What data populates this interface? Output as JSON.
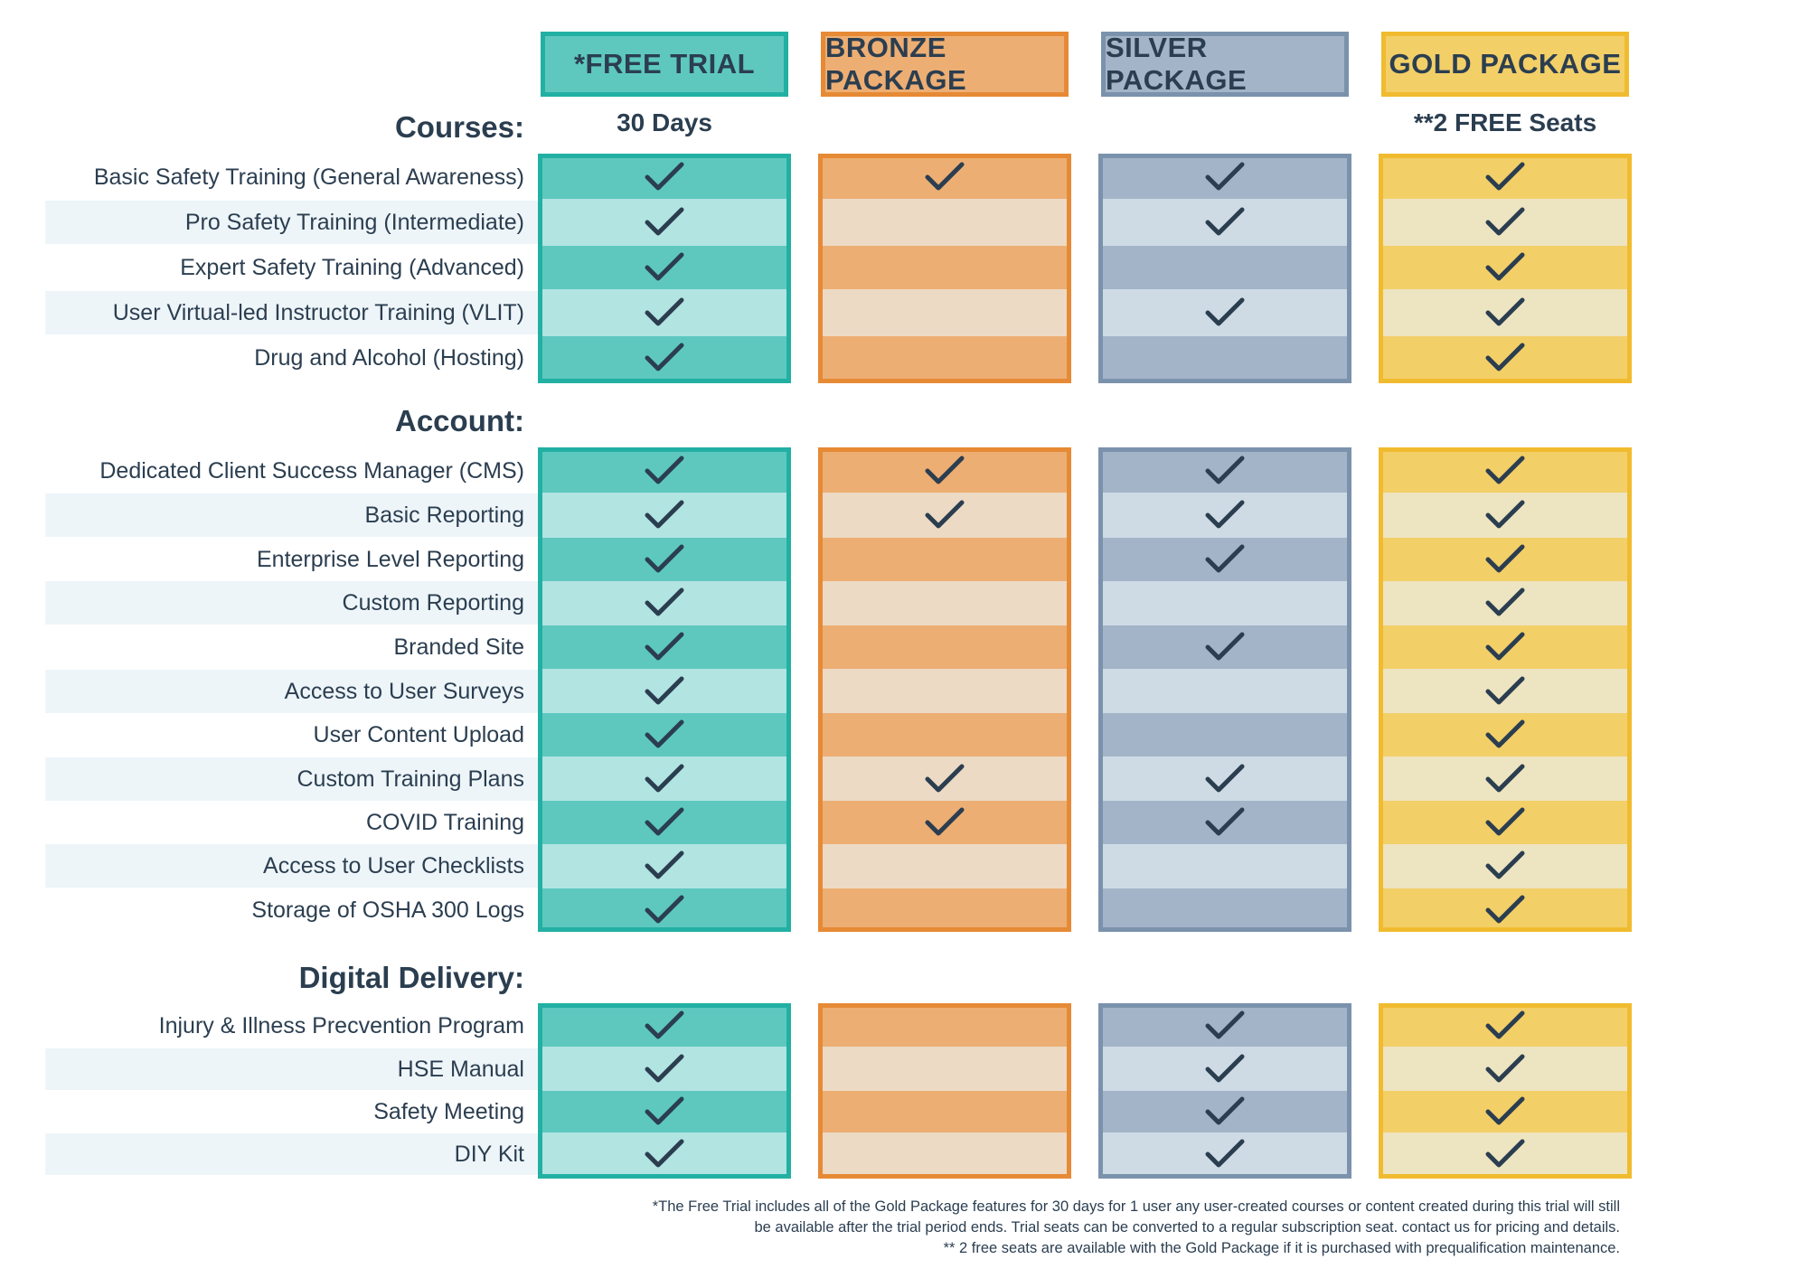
{
  "packages": [
    {
      "key": "free",
      "label": "*FREE TRIAL",
      "subtitle": "30 Days",
      "border": "#22b0a3",
      "header_bg": "#5ec8bf",
      "dark": "#5ec8bf",
      "light": "#b2e4e2"
    },
    {
      "key": "bronze",
      "label": "BRONZE PACKAGE",
      "subtitle": "",
      "border": "#e68a35",
      "header_bg": "#edae73",
      "dark": "#edae73",
      "light": "#ecdac5"
    },
    {
      "key": "silver",
      "label": "SILVER PACKAGE",
      "subtitle": "",
      "border": "#7b92ac",
      "header_bg": "#a4b4c8",
      "dark": "#a4b4c8",
      "light": "#cedbe5"
    },
    {
      "key": "gold",
      "label": "GOLD PACKAGE",
      "subtitle": "**2 FREE Seats",
      "border": "#f0bb2e",
      "header_bg": "#f3cf68",
      "dark": "#f3cf68",
      "light": "#ede4c1"
    }
  ],
  "sections": [
    {
      "title": "Courses:",
      "rows": [
        {
          "label": "Basic Safety Training (General Awareness)",
          "checks": [
            true,
            true,
            true,
            true
          ]
        },
        {
          "label": "Pro Safety Training (Intermediate)",
          "checks": [
            true,
            false,
            true,
            true
          ]
        },
        {
          "label": "Expert Safety Training (Advanced)",
          "checks": [
            true,
            false,
            false,
            true
          ]
        },
        {
          "label": "User Virtual-led Instructor Training (VLIT)",
          "checks": [
            true,
            false,
            true,
            true
          ]
        },
        {
          "label": "Drug and Alcohol (Hosting)",
          "checks": [
            true,
            false,
            false,
            true
          ]
        }
      ]
    },
    {
      "title": "Account:",
      "rows": [
        {
          "label": "Dedicated Client Success Manager (CMS)",
          "checks": [
            true,
            true,
            true,
            true
          ]
        },
        {
          "label": "Basic Reporting",
          "checks": [
            true,
            true,
            true,
            true
          ]
        },
        {
          "label": "Enterprise Level Reporting",
          "checks": [
            true,
            false,
            true,
            true
          ]
        },
        {
          "label": "Custom Reporting",
          "checks": [
            true,
            false,
            false,
            true
          ]
        },
        {
          "label": "Branded Site",
          "checks": [
            true,
            false,
            true,
            true
          ]
        },
        {
          "label": "Access to User Surveys",
          "checks": [
            true,
            false,
            false,
            true
          ]
        },
        {
          "label": "User Content Upload",
          "checks": [
            true,
            false,
            false,
            true
          ]
        },
        {
          "label": "Custom Training Plans",
          "checks": [
            true,
            true,
            true,
            true
          ]
        },
        {
          "label": "COVID Training",
          "checks": [
            true,
            true,
            true,
            true
          ]
        },
        {
          "label": "Access to User Checklists",
          "checks": [
            true,
            false,
            false,
            true
          ]
        },
        {
          "label": "Storage of OSHA 300 Logs",
          "checks": [
            true,
            false,
            false,
            true
          ]
        }
      ]
    },
    {
      "title": "Digital Delivery:",
      "rows": [
        {
          "label": "Injury & Illness Precvention Program",
          "checks": [
            true,
            false,
            true,
            true
          ]
        },
        {
          "label": "HSE Manual",
          "checks": [
            true,
            false,
            true,
            true
          ]
        },
        {
          "label": "Safety Meeting",
          "checks": [
            true,
            false,
            true,
            true
          ]
        },
        {
          "label": "DIY Kit",
          "checks": [
            true,
            false,
            true,
            true
          ]
        }
      ]
    }
  ],
  "footnotes": [
    "*The Free Trial includes all of the Gold Package features for 30 days for 1 user any user-created courses or content created during this trial will still",
    "be available after the trial period ends. Trial seats can be converted to a regular subscription seat. contact us for pricing and details.",
    "** 2 free seats are available with the Gold Package if it is purchased with prequalification maintenance."
  ],
  "check_color": "#2b3e50"
}
